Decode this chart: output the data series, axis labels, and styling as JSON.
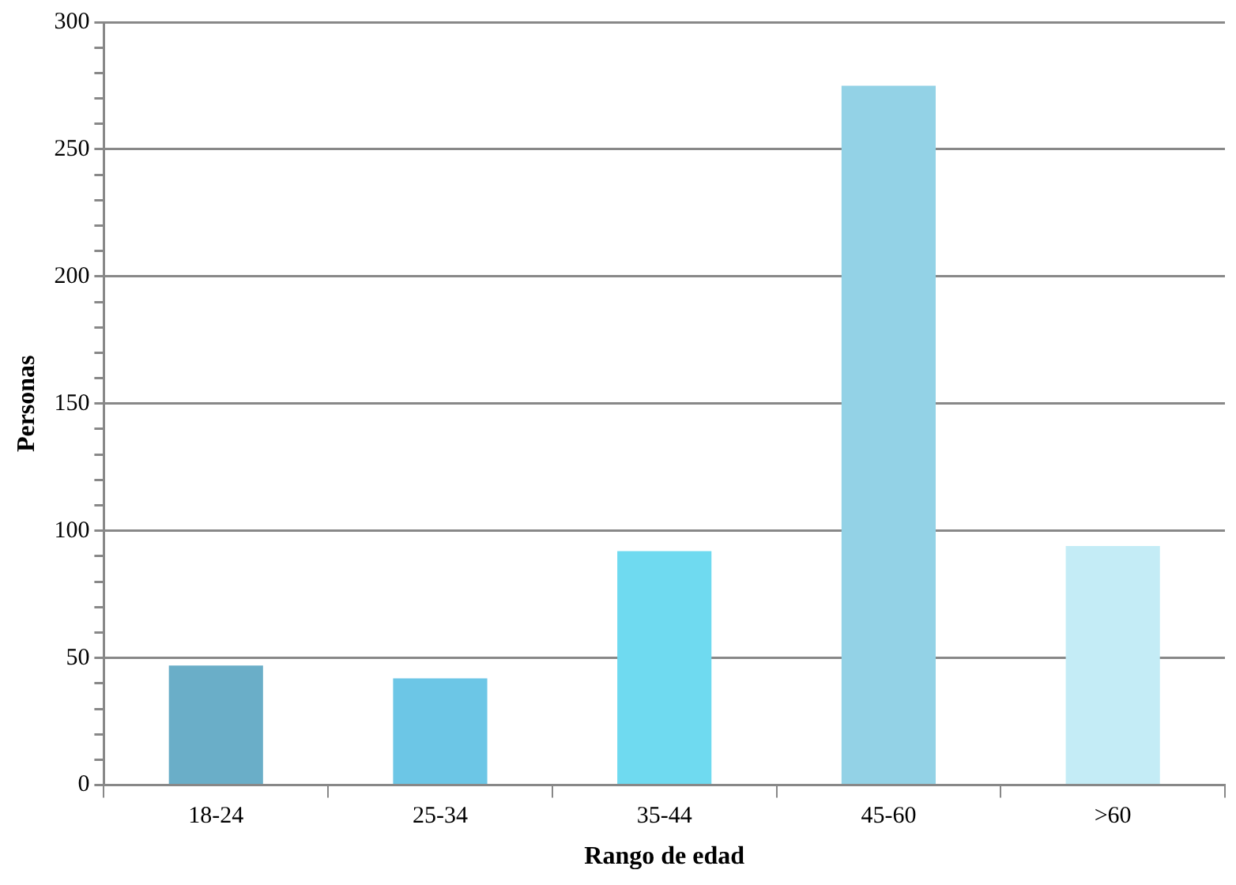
{
  "chart_data": {
    "type": "bar",
    "xlabel": "Rango de edad",
    "ylabel": "Personas",
    "categories": [
      "18-24",
      "25-34",
      "35-44",
      "45-60",
      ">60"
    ],
    "values": [
      47,
      42,
      92,
      275,
      94
    ],
    "colors": [
      "#6aaec8",
      "#6cc6e6",
      "#6fdaf0",
      "#93d2e6",
      "#c4ecf6"
    ],
    "ylim": [
      0,
      300
    ],
    "yticks": [
      0,
      {
        "value": 10,
        "label": null
      },
      {
        "value": 20,
        "label": null
      },
      {
        "value": 30,
        "label": null
      },
      {
        "value": 40,
        "label": null
      },
      50,
      {
        "value": 60,
        "label": null
      },
      {
        "value": 70,
        "label": null
      },
      {
        "value": 80,
        "label": null
      },
      {
        "value": 90,
        "label": null
      },
      100,
      {
        "value": 110,
        "label": null
      },
      {
        "value": 120,
        "label": null
      },
      {
        "value": 130,
        "label": null
      },
      {
        "value": 140,
        "label": null
      },
      150,
      {
        "value": 160,
        "label": null
      },
      {
        "value": 170,
        "label": null
      },
      {
        "value": 180,
        "label": null
      },
      {
        "value": 190,
        "label": null
      },
      200,
      {
        "value": 210,
        "label": null
      },
      {
        "value": 220,
        "label": null
      },
      {
        "value": 230,
        "label": null
      },
      {
        "value": 240,
        "label": null
      },
      250,
      {
        "value": 260,
        "label": null
      },
      {
        "value": 270,
        "label": null
      },
      {
        "value": 280,
        "label": null
      },
      {
        "value": 290,
        "label": null
      },
      300
    ],
    "grid": "y",
    "legend": false
  }
}
